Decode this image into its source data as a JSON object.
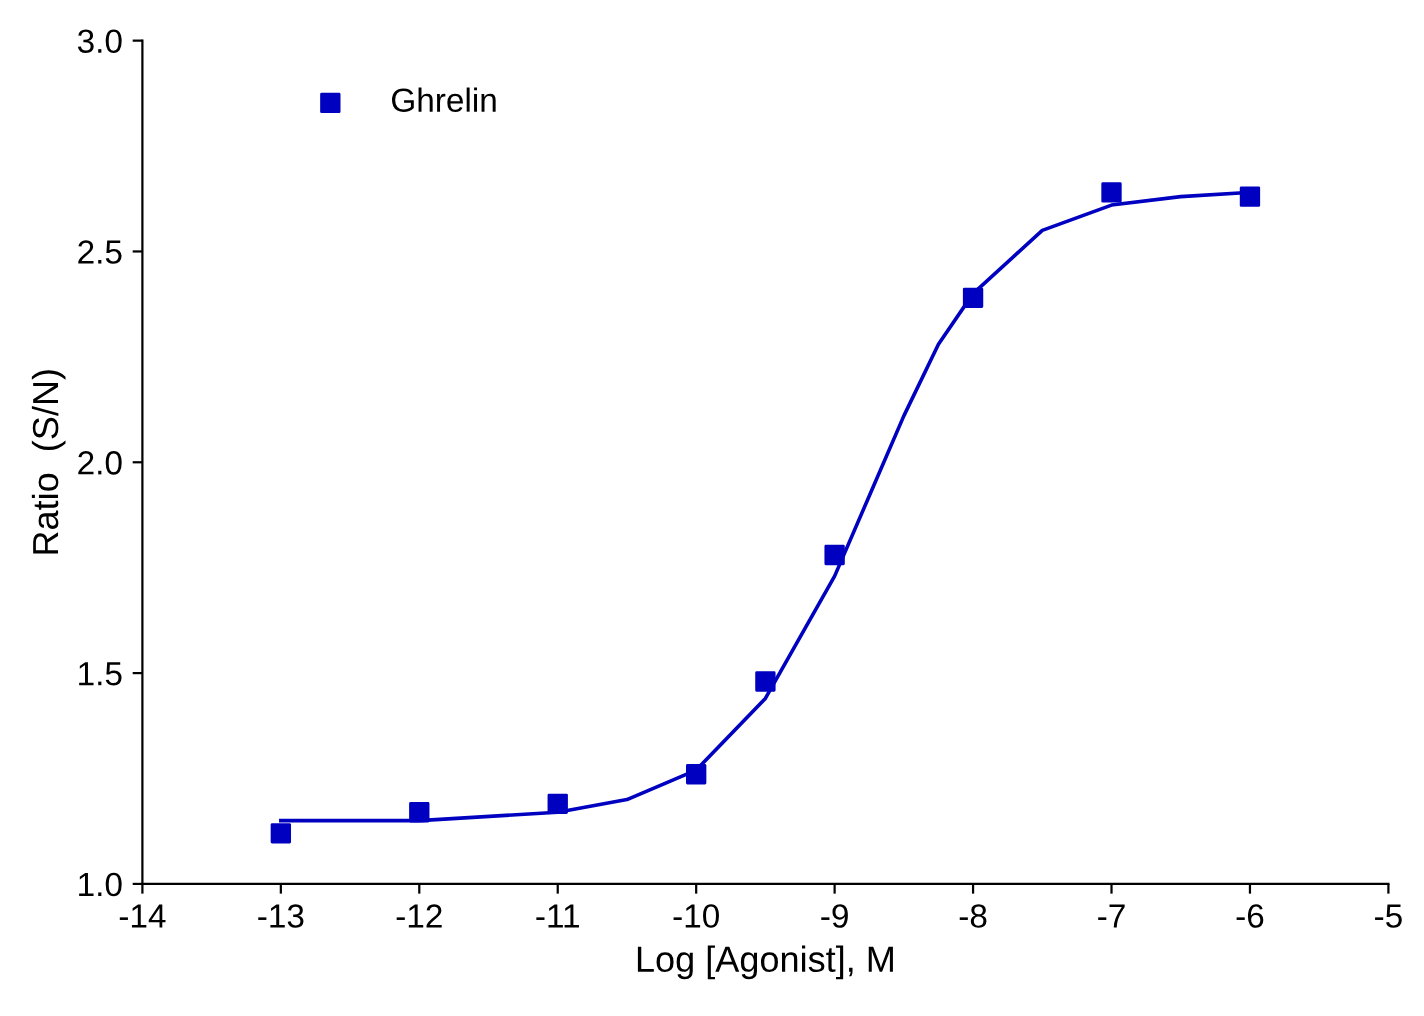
{
  "chart_data": {
    "type": "scatter",
    "xlabel": "Log [Agonist], M",
    "ylabel": "Ratio  (S/N)",
    "xlim": [
      -14,
      -5
    ],
    "xticks": [
      -14,
      -13,
      -12,
      -11,
      -10,
      -9,
      -8,
      -7,
      -6,
      -5
    ],
    "ylim": [
      1.0,
      3.0
    ],
    "yticks": [
      {
        "value": 1.0,
        "label": "1.0"
      },
      {
        "value": 1.5,
        "label": "1.5"
      },
      {
        "value": 2.0,
        "label": "2.0"
      },
      {
        "value": 2.5,
        "label": "2.5"
      },
      {
        "value": 3.0,
        "label": "3.0"
      }
    ],
    "grid": false,
    "legend": "top left",
    "series": [
      {
        "name": "Ghrelin",
        "marker": "square",
        "color": "#0000c0",
        "x": [
          -13,
          -12,
          -11,
          -10,
          -9.5,
          -9,
          -8,
          -7,
          -6
        ],
        "values": [
          1.12,
          1.17,
          1.19,
          1.26,
          1.48,
          1.78,
          2.39,
          2.64,
          2.63
        ]
      },
      {
        "type": "line",
        "marker": "none",
        "line_style": "solid",
        "color": "#0000c0",
        "x": [
          -13,
          -12,
          -11,
          -10.5,
          -10,
          -9.5,
          -9,
          -8.75,
          -8.5,
          -8.25,
          -8,
          -7.5,
          -7,
          -6.5,
          -6
        ],
        "values": [
          1.15,
          1.15,
          1.17,
          1.2,
          1.27,
          1.44,
          1.73,
          1.92,
          2.11,
          2.28,
          2.4,
          2.55,
          2.61,
          2.63,
          2.64
        ]
      }
    ]
  }
}
